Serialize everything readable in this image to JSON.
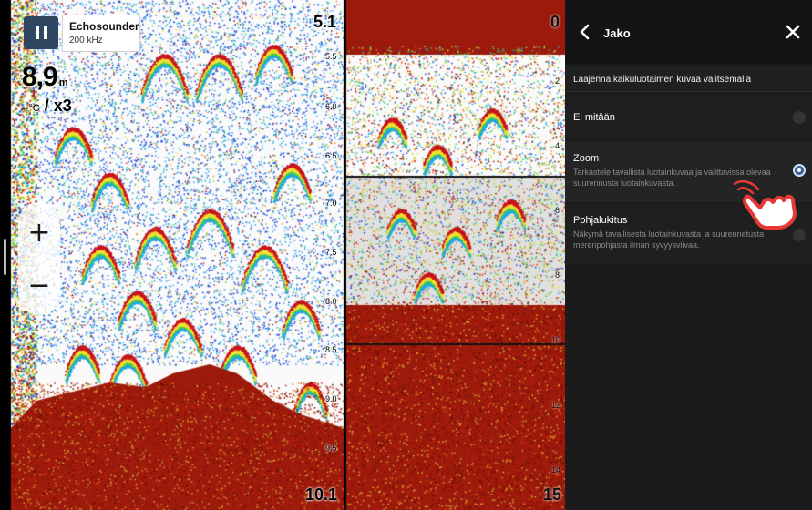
{
  "sonar": {
    "source": {
      "title": "Echosounder",
      "frequency": "200 kHz"
    },
    "depth": {
      "value": "8,9",
      "unit": "m"
    },
    "temp": {
      "value": "--",
      "unit": "°C",
      "zoom": "/ x3"
    },
    "left_scale": {
      "top": "5.1",
      "bottom": "10.1",
      "ticks": [
        "5.5",
        "6.0",
        "6.5",
        "7.0",
        "7.5",
        "8.0",
        "8.5",
        "9.0",
        "9.5"
      ]
    },
    "right_scale": {
      "top": "0",
      "bottom": "15",
      "ticks": [
        "2",
        "4",
        "6",
        "8",
        "10",
        "12",
        "14"
      ]
    },
    "zoom_in_label": "+",
    "zoom_out_label": "−"
  },
  "icons": {
    "pause": "pause-icon",
    "back": "chevron-left-icon",
    "close": "close-icon",
    "hand": "pointing-hand-icon"
  },
  "panel": {
    "title": "Jako",
    "description": "Laajenna kaikuluotaimen kuvaa valitsemalla",
    "options": [
      {
        "title": "Ei mitään",
        "desc": "",
        "selected": false
      },
      {
        "title": "Zoom",
        "desc": "Tarkastele tavallista luotainkuvaa ja valittavissa olevaa suurennusta luotainkuvasta.",
        "selected": true
      },
      {
        "title": "Pohjalukitus",
        "desc": "Näkymä tavallisesta luotainkuvasta ja suurennetusta merenpohjasta ilman syvyysviivaa.",
        "selected": false
      }
    ]
  },
  "colors": {
    "panel_bg": "#1b1b1b",
    "accent": "#3a5f8f",
    "bottom_red": "#9b1a0c",
    "hand_red": "#e53935"
  }
}
